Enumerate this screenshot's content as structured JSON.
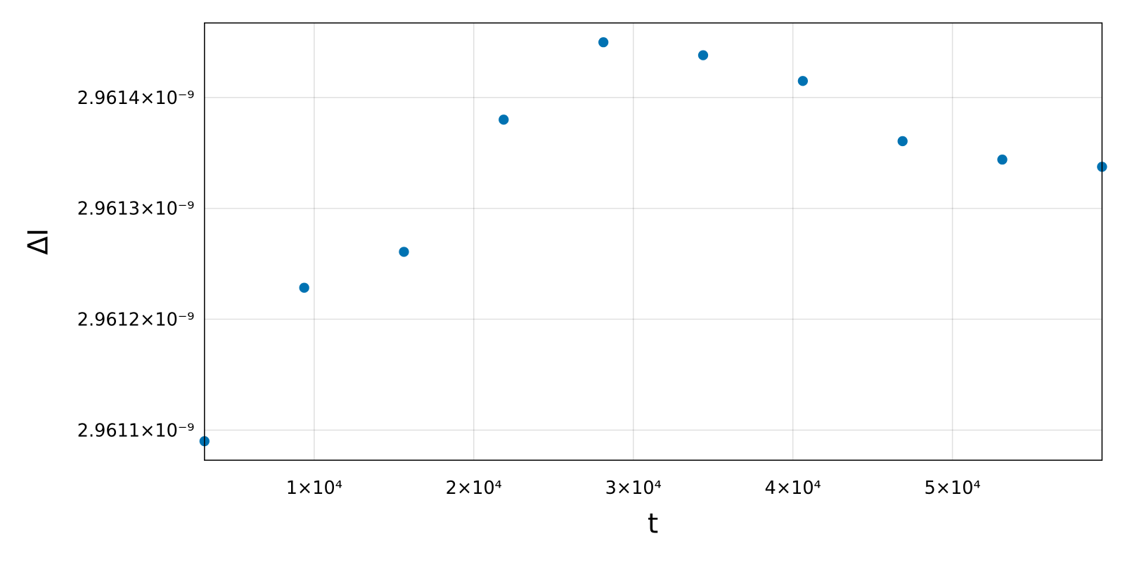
{
  "chart_data": {
    "type": "scatter",
    "xlabel": "t",
    "ylabel": "ΔI",
    "x": [
      3125,
      9375,
      15625,
      21875,
      28125,
      34375,
      40625,
      46875,
      53125,
      59375
    ],
    "series": [
      {
        "color": "#0072b2",
        "values": [
          2.96109e-09,
          2.9612284e-09,
          2.9612608e-09,
          2.96138e-09,
          2.9614498e-09,
          2.9614381e-09,
          2.9614149e-09,
          2.9613606e-09,
          2.961344e-09,
          2.9613375e-09
        ]
      }
    ],
    "xlim": [
      3125,
      59375
    ],
    "ylim": [
      2.96107285e-09,
      2.96146723e-09
    ],
    "xticks": [
      {
        "value": 10000,
        "label": "1×10⁴"
      },
      {
        "value": 20000,
        "label": "2×10⁴"
      },
      {
        "value": 30000,
        "label": "3×10⁴"
      },
      {
        "value": 40000,
        "label": "4×10⁴"
      },
      {
        "value": 50000,
        "label": "5×10⁴"
      }
    ],
    "yticks": [
      {
        "value": 2.9611e-09,
        "label": "2.9611×10⁻⁹"
      },
      {
        "value": 2.9612e-09,
        "label": "2.9612×10⁻⁹"
      },
      {
        "value": 2.9613e-09,
        "label": "2.9613×10⁻⁹"
      },
      {
        "value": 2.9614e-09,
        "label": "2.9614×10⁻⁹"
      }
    ],
    "grid": true
  }
}
